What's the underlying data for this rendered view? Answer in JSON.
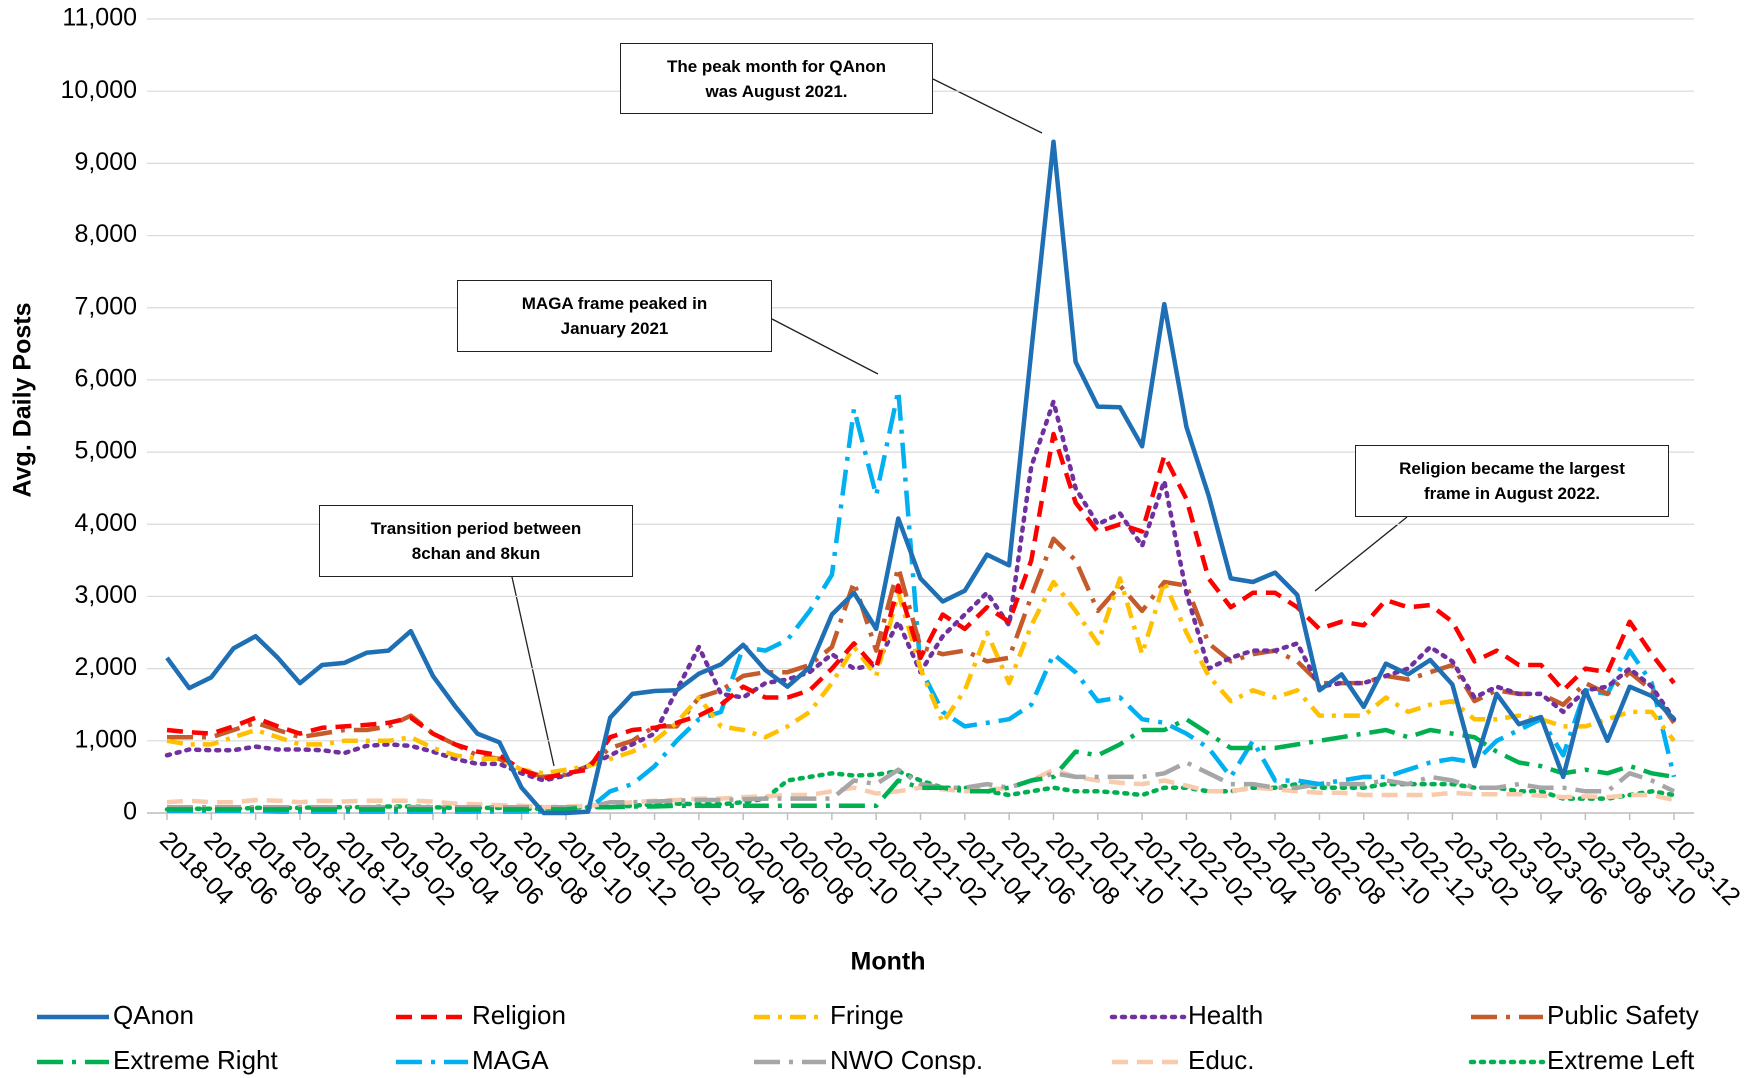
{
  "chart_data": {
    "type": "line",
    "xlabel": "Month",
    "ylabel": "Avg. Daily Posts",
    "legend": "bottom",
    "grid": true,
    "categories": [
      "2018-04",
      null,
      "2018-06",
      null,
      "2018-08",
      null,
      "2018-10",
      null,
      "2018-12",
      null,
      "2019-02",
      null,
      "2019-04",
      null,
      "2019-06",
      null,
      "2019-08",
      null,
      "2019-10",
      null,
      "2019-12",
      null,
      "2020-02",
      null,
      "2020-04",
      null,
      "2020-06",
      null,
      "2020-08",
      null,
      "2020-10",
      null,
      "2020-12",
      null,
      "2021-02",
      null,
      "2021-04",
      null,
      "2021-06",
      null,
      "2021-08",
      null,
      "2021-10",
      null,
      "2021-12",
      null,
      "2022-02",
      null,
      "2022-04",
      null,
      "2022-06",
      null,
      "2022-08",
      null,
      "2022-10",
      null,
      "2022-12",
      null,
      "2023-02",
      null,
      "2023-04",
      null,
      "2023-06",
      null,
      "2023-08",
      null,
      "2023-10",
      null,
      "2023-12"
    ],
    "ylim": [
      0,
      11000
    ],
    "yticks": [
      0,
      {
        "value": 1000,
        "label": "1,000"
      },
      {
        "value": 2000,
        "label": "2,000"
      },
      {
        "value": 3000,
        "label": "3,000"
      },
      {
        "value": 4000,
        "label": "4,000"
      },
      {
        "value": 5000,
        "label": "5,000"
      },
      {
        "value": 6000,
        "label": "6,000"
      },
      {
        "value": 7000,
        "label": "7,000"
      },
      {
        "value": 8000,
        "label": "8,000"
      },
      {
        "value": 9000,
        "label": "9,000"
      },
      {
        "value": 10000,
        "label": "10,000"
      },
      {
        "value": 11000,
        "label": "11,000"
      }
    ],
    "annotations": [
      "The peak month for QAnon was August 2021.",
      "MAGA frame peaked in January 2021",
      "Transition period between 8chan and 8kun",
      "Religion became the largest frame in August 2022."
    ],
    "series": [
      {
        "name": "QAnon",
        "color": "#1f6fb5",
        "dash": "solid",
        "values": [
          2150,
          1730,
          1880,
          2280,
          2450,
          2150,
          1800,
          2050,
          2080,
          2220,
          2250,
          2520,
          1900,
          1480,
          1100,
          980,
          350,
          0,
          0,
          20,
          1320,
          1650,
          1690,
          1700,
          1930,
          2060,
          2330,
          1980,
          1750,
          2020,
          2750,
          3050,
          2550,
          4080,
          3250,
          2930,
          3080,
          3580,
          3430,
          6400,
          9300,
          6250,
          5630,
          5620,
          5080,
          7050,
          5350,
          4400,
          3250,
          3200,
          3330,
          3020,
          1700,
          1920,
          1470,
          2070,
          1920,
          2120,
          1780,
          650,
          1650,
          1230,
          1330,
          500,
          1700,
          1000,
          1750,
          1620,
          1300
        ]
      },
      {
        "name": "Religion",
        "color": "#ff0000",
        "dash": "dash",
        "values": [
          1150,
          1120,
          1100,
          1200,
          1320,
          1200,
          1100,
          1180,
          1200,
          1220,
          1250,
          1320,
          1100,
          950,
          850,
          800,
          600,
          480,
          550,
          600,
          1050,
          1150,
          1180,
          1250,
          1350,
          1500,
          1750,
          1600,
          1600,
          1700,
          2000,
          2350,
          2000,
          3150,
          2150,
          2750,
          2550,
          2850,
          2650,
          3500,
          5250,
          4300,
          3900,
          4000,
          3900,
          4950,
          4350,
          3250,
          2850,
          3050,
          3050,
          2850,
          2550,
          2650,
          2600,
          2950,
          2850,
          2880,
          2650,
          2100,
          2250,
          2050,
          2050,
          1700,
          2000,
          1950,
          2650,
          2200,
          1800
        ]
      },
      {
        "name": "Fringe",
        "color": "#ffc000",
        "dash": "dash-dot",
        "values": [
          1000,
          950,
          950,
          1050,
          1150,
          1050,
          950,
          950,
          1000,
          1000,
          1000,
          1050,
          900,
          800,
          750,
          750,
          600,
          550,
          600,
          650,
          750,
          850,
          1000,
          1250,
          1600,
          1200,
          1150,
          1050,
          1200,
          1400,
          1800,
          2300,
          1900,
          3050,
          2000,
          1250,
          1700,
          2500,
          1800,
          2600,
          3200,
          2800,
          2350,
          3250,
          2200,
          3200,
          2500,
          1900,
          1550,
          1700,
          1600,
          1700,
          1350,
          1350,
          1350,
          1600,
          1400,
          1500,
          1550,
          1300,
          1300,
          1350,
          1300,
          1200,
          1200,
          1300,
          1400,
          1400,
          1000
        ]
      },
      {
        "name": "Health",
        "color": "#7030a0",
        "dash": "dot",
        "values": [
          800,
          880,
          870,
          870,
          920,
          880,
          880,
          870,
          830,
          930,
          950,
          930,
          850,
          750,
          680,
          680,
          550,
          450,
          520,
          650,
          800,
          950,
          1100,
          1700,
          2300,
          1650,
          1600,
          1800,
          1850,
          1950,
          2200,
          2000,
          2050,
          2650,
          1950,
          2450,
          2750,
          3050,
          2600,
          4800,
          5700,
          4500,
          4000,
          4150,
          3700,
          4600,
          3050,
          2000,
          2150,
          2250,
          2250,
          2350,
          1750,
          1800,
          1800,
          1900,
          2000,
          2300,
          2100,
          1600,
          1750,
          1650,
          1650,
          1400,
          1700,
          1750,
          2000,
          1750,
          1300
        ]
      },
      {
        "name": "Public Safety",
        "color": "#c55a2b",
        "dash": "long-dash-dot",
        "values": [
          1050,
          1050,
          1050,
          1150,
          1250,
          1150,
          1050,
          1100,
          1150,
          1150,
          1200,
          1350,
          1100,
          950,
          800,
          750,
          600,
          500,
          530,
          650,
          900,
          1000,
          1200,
          1200,
          1600,
          1700,
          1900,
          1950,
          1950,
          2050,
          2300,
          3200,
          2250,
          3400,
          2300,
          2200,
          2250,
          2100,
          2150,
          3000,
          3800,
          3500,
          2800,
          3150,
          2800,
          3200,
          3150,
          2350,
          2100,
          2200,
          2250,
          2100,
          1800,
          1800,
          1800,
          1900,
          1850,
          1950,
          2050,
          1550,
          1700,
          1650,
          1650,
          1500,
          1800,
          1650,
          1950,
          1700,
          1250
        ]
      },
      {
        "name": "Extreme Right",
        "color": "#00b050",
        "dash": "long-dash-dot",
        "values": [
          50,
          50,
          50,
          50,
          50,
          50,
          50,
          50,
          50,
          50,
          50,
          50,
          50,
          50,
          50,
          50,
          50,
          50,
          50,
          80,
          80,
          90,
          90,
          100,
          100,
          100,
          100,
          100,
          100,
          100,
          100,
          100,
          100,
          450,
          350,
          350,
          300,
          300,
          350,
          450,
          500,
          850,
          800,
          950,
          1150,
          1150,
          1300,
          1100,
          900,
          900,
          900,
          950,
          1000,
          1050,
          1100,
          1150,
          1050,
          1150,
          1100,
          1050,
          850,
          700,
          650,
          550,
          600,
          550,
          650,
          550,
          500
        ]
      },
      {
        "name": "MAGA",
        "color": "#00b0f0",
        "dash": "long-dash-dot",
        "values": [
          30,
          30,
          30,
          30,
          30,
          20,
          20,
          20,
          20,
          20,
          20,
          20,
          20,
          20,
          20,
          20,
          20,
          20,
          30,
          50,
          300,
          400,
          650,
          1000,
          1300,
          1400,
          2300,
          2250,
          2400,
          2800,
          3300,
          5600,
          4400,
          5850,
          2000,
          1400,
          1200,
          1250,
          1300,
          1500,
          2200,
          1950,
          1550,
          1600,
          1300,
          1250,
          1100,
          900,
          500,
          1000,
          450,
          450,
          400,
          450,
          500,
          500,
          600,
          700,
          750,
          700,
          1000,
          1150,
          1300,
          800,
          1700,
          1650,
          2250,
          1800,
          500
        ]
      },
      {
        "name": "NWO Consp.",
        "color": "#a6a6a6",
        "dash": "long-dash-dot",
        "values": [
          80,
          80,
          80,
          80,
          80,
          80,
          80,
          80,
          80,
          80,
          80,
          80,
          80,
          80,
          80,
          80,
          80,
          80,
          80,
          80,
          150,
          150,
          160,
          170,
          180,
          180,
          190,
          200,
          200,
          200,
          200,
          450,
          400,
          600,
          400,
          350,
          350,
          400,
          350,
          450,
          550,
          500,
          500,
          500,
          500,
          550,
          700,
          550,
          400,
          400,
          350,
          350,
          400,
          400,
          400,
          450,
          400,
          500,
          450,
          350,
          350,
          400,
          350,
          350,
          300,
          300,
          550,
          450,
          300
        ]
      },
      {
        "name": "Educ.",
        "color": "#f8cbad",
        "dash": "dash",
        "values": [
          150,
          170,
          150,
          150,
          180,
          170,
          150,
          170,
          160,
          170,
          170,
          170,
          160,
          130,
          120,
          110,
          100,
          80,
          90,
          100,
          130,
          150,
          170,
          180,
          200,
          200,
          220,
          230,
          250,
          250,
          300,
          350,
          270,
          300,
          350,
          330,
          300,
          320,
          350,
          450,
          600,
          500,
          450,
          420,
          400,
          450,
          380,
          300,
          300,
          350,
          330,
          300,
          280,
          280,
          250,
          250,
          250,
          250,
          280,
          260,
          260,
          260,
          240,
          220,
          230,
          220,
          250,
          250,
          180
        ]
      },
      {
        "name": "Extreme Left",
        "color": "#00b050",
        "dash": "dot",
        "values": [
          50,
          60,
          60,
          60,
          70,
          70,
          70,
          80,
          80,
          80,
          90,
          90,
          80,
          70,
          70,
          70,
          60,
          60,
          70,
          80,
          80,
          100,
          120,
          130,
          120,
          120,
          150,
          200,
          450,
          500,
          550,
          520,
          530,
          580,
          450,
          350,
          350,
          300,
          250,
          300,
          350,
          300,
          300,
          280,
          250,
          350,
          350,
          300,
          300,
          350,
          350,
          400,
          350,
          350,
          350,
          400,
          400,
          400,
          400,
          350,
          350,
          300,
          300,
          200,
          200,
          200,
          250,
          300,
          250
        ]
      }
    ]
  }
}
